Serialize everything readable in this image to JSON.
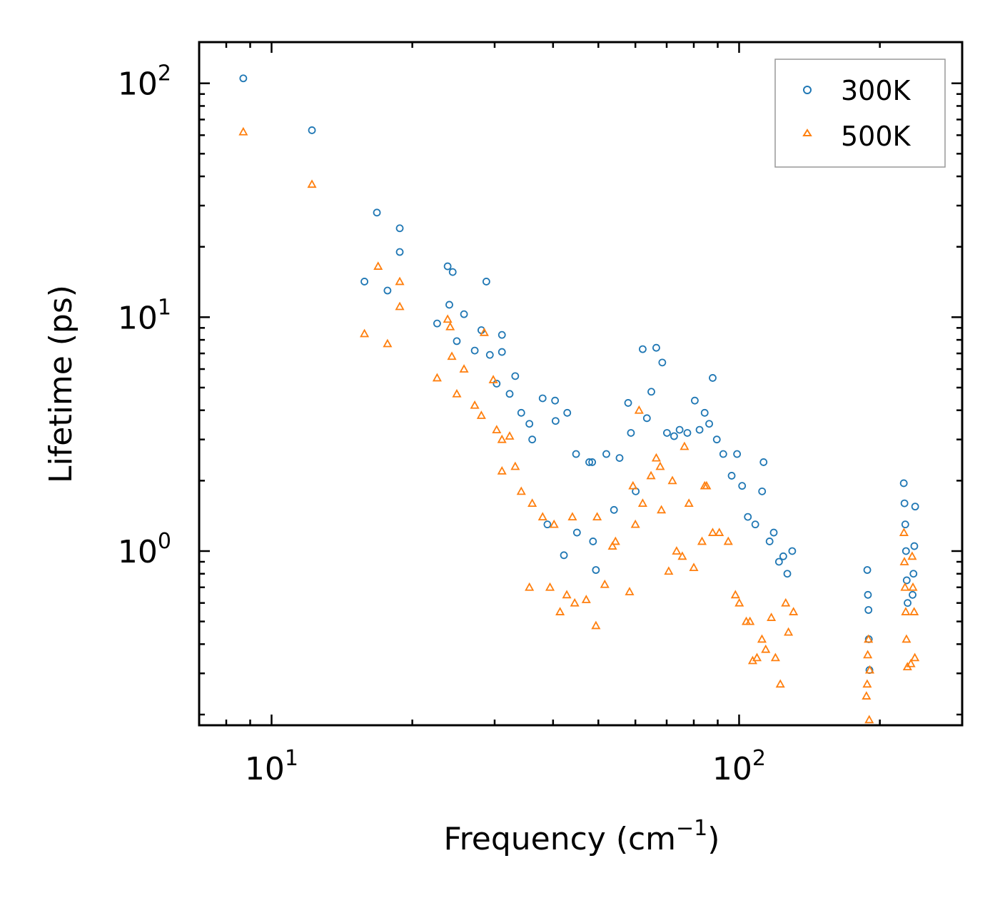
{
  "chart_data": {
    "type": "scatter",
    "title": "",
    "xlabel": "Frequency (cm",
    "xlabel_sup": "−1",
    "xlabel_end": ")",
    "ylabel": "Lifetime (ps)",
    "xscale": "log",
    "yscale": "log",
    "xlim": [
      7,
      300
    ],
    "ylim": [
      0.18,
      150
    ],
    "x_ticks": [
      {
        "base": "10",
        "exp": "1",
        "value": 10
      },
      {
        "base": "10",
        "exp": "2",
        "value": 100
      }
    ],
    "y_ticks": [
      {
        "base": "10",
        "exp": "0",
        "value": 1
      },
      {
        "base": "10",
        "exp": "1",
        "value": 10
      },
      {
        "base": "10",
        "exp": "2",
        "value": 100
      }
    ],
    "legend_position": "top-right",
    "series": [
      {
        "name": "300K",
        "marker": "circle",
        "color": "#1f77b4",
        "points": [
          [
            8.7,
            105
          ],
          [
            12.2,
            63
          ],
          [
            15.8,
            14.2
          ],
          [
            16.8,
            28
          ],
          [
            17.7,
            13
          ],
          [
            18.8,
            24
          ],
          [
            18.8,
            19
          ],
          [
            22.6,
            9.4
          ],
          [
            23.8,
            16.5
          ],
          [
            24.0,
            11.3
          ],
          [
            24.4,
            15.6
          ],
          [
            24.9,
            7.9
          ],
          [
            25.8,
            10.3
          ],
          [
            27.2,
            7.2
          ],
          [
            28.1,
            8.8
          ],
          [
            28.8,
            14.2
          ],
          [
            29.3,
            6.9
          ],
          [
            30.3,
            5.2
          ],
          [
            31.1,
            7.1
          ],
          [
            31.1,
            8.4
          ],
          [
            32.3,
            4.7
          ],
          [
            33.2,
            5.6
          ],
          [
            34.2,
            3.9
          ],
          [
            35.6,
            3.5
          ],
          [
            36.1,
            3.0
          ],
          [
            38.0,
            4.5
          ],
          [
            40.4,
            4.4
          ],
          [
            40.5,
            3.6
          ],
          [
            42.9,
            3.9
          ],
          [
            44.8,
            2.6
          ],
          [
            47.8,
            2.4
          ],
          [
            48.5,
            2.4
          ],
          [
            52.0,
            2.6
          ],
          [
            55.5,
            2.5
          ],
          [
            57.9,
            4.3
          ],
          [
            58.7,
            3.2
          ],
          [
            62.2,
            7.3
          ],
          [
            63.5,
            3.7
          ],
          [
            64.9,
            4.8
          ],
          [
            66.5,
            7.4
          ],
          [
            68.5,
            6.4
          ],
          [
            70.1,
            3.2
          ],
          [
            72.6,
            3.1
          ],
          [
            74.6,
            3.3
          ],
          [
            77.5,
            3.2
          ],
          [
            80.4,
            4.4
          ],
          [
            82.3,
            3.3
          ],
          [
            84.4,
            3.9
          ],
          [
            86.3,
            3.5
          ],
          [
            87.8,
            5.5
          ],
          [
            89.6,
            3.0
          ],
          [
            92.5,
            2.6
          ],
          [
            96.4,
            2.1
          ],
          [
            99.0,
            2.6
          ],
          [
            101.5,
            1.9
          ],
          [
            104.4,
            1.4
          ],
          [
            108.3,
            1.3
          ],
          [
            112.0,
            1.8
          ],
          [
            112.8,
            2.4
          ],
          [
            116.2,
            1.1
          ],
          [
            118.6,
            1.2
          ],
          [
            121.7,
            0.9
          ],
          [
            124.3,
            0.95
          ],
          [
            126.8,
            0.8
          ],
          [
            129.9,
            1.0
          ],
          [
            45.0,
            1.2
          ],
          [
            48.7,
            1.1
          ],
          [
            54.0,
            1.5
          ],
          [
            60.1,
            1.8
          ],
          [
            49.4,
            0.83
          ],
          [
            42.2,
            0.96
          ],
          [
            38.9,
            1.3
          ],
          [
            188.0,
            0.83
          ],
          [
            188.6,
            0.65
          ],
          [
            189.1,
            0.56
          ],
          [
            189.4,
            0.42
          ],
          [
            190.0,
            0.31
          ],
          [
            225.0,
            1.95
          ],
          [
            225.8,
            1.6
          ],
          [
            226.7,
            1.3
          ],
          [
            227.5,
            1.0
          ],
          [
            228.3,
            0.75
          ],
          [
            229.3,
            0.6
          ],
          [
            238.0,
            1.55
          ],
          [
            237.0,
            1.05
          ],
          [
            236.0,
            0.8
          ],
          [
            235.0,
            0.65
          ]
        ]
      },
      {
        "name": "500K",
        "marker": "triangle",
        "color": "#ff7f0e",
        "points": [
          [
            8.7,
            62
          ],
          [
            12.2,
            37
          ],
          [
            15.8,
            8.5
          ],
          [
            16.9,
            16.5
          ],
          [
            17.7,
            7.7
          ],
          [
            18.8,
            14.2
          ],
          [
            18.8,
            11.1
          ],
          [
            22.6,
            5.5
          ],
          [
            23.8,
            9.8
          ],
          [
            24.1,
            9.1
          ],
          [
            24.3,
            6.8
          ],
          [
            24.9,
            4.7
          ],
          [
            25.8,
            6.0
          ],
          [
            27.2,
            4.2
          ],
          [
            28.1,
            3.8
          ],
          [
            28.5,
            8.6
          ],
          [
            29.8,
            5.4
          ],
          [
            30.3,
            3.3
          ],
          [
            31.1,
            3.0
          ],
          [
            31.1,
            2.2
          ],
          [
            32.3,
            3.1
          ],
          [
            33.2,
            2.3
          ],
          [
            34.2,
            1.8
          ],
          [
            35.6,
            0.7
          ],
          [
            36.1,
            1.6
          ],
          [
            38.0,
            1.4
          ],
          [
            39.4,
            0.7
          ],
          [
            40.2,
            1.3
          ],
          [
            41.4,
            0.55
          ],
          [
            42.8,
            0.65
          ],
          [
            44.5,
            0.6
          ],
          [
            47.1,
            0.62
          ],
          [
            49.4,
            0.48
          ],
          [
            51.6,
            0.72
          ],
          [
            54.4,
            1.1
          ],
          [
            58.3,
            0.67
          ],
          [
            60.0,
            1.3
          ],
          [
            62.2,
            1.6
          ],
          [
            64.8,
            2.1
          ],
          [
            66.5,
            2.5
          ],
          [
            67.8,
            2.3
          ],
          [
            68.2,
            1.5
          ],
          [
            70.7,
            0.82
          ],
          [
            73.5,
            1.0
          ],
          [
            75.6,
            0.95
          ],
          [
            78.1,
            1.6
          ],
          [
            80.0,
            0.85
          ],
          [
            83.3,
            1.1
          ],
          [
            85.2,
            1.9
          ],
          [
            87.8,
            1.2
          ],
          [
            90.7,
            1.2
          ],
          [
            94.8,
            1.1
          ],
          [
            98.2,
            0.65
          ],
          [
            100.1,
            0.6
          ],
          [
            103.6,
            0.5
          ],
          [
            105.5,
            0.5
          ],
          [
            106.9,
            0.34
          ],
          [
            109.2,
            0.35
          ],
          [
            111.9,
            0.42
          ],
          [
            114.0,
            0.38
          ],
          [
            117.2,
            0.52
          ],
          [
            119.6,
            0.35
          ],
          [
            122.5,
            0.27
          ],
          [
            125.8,
            0.6
          ],
          [
            127.5,
            0.45
          ],
          [
            130.7,
            0.55
          ],
          [
            44.0,
            1.4
          ],
          [
            49.7,
            1.4
          ],
          [
            53.6,
            1.05
          ],
          [
            59.3,
            1.9
          ],
          [
            61.1,
            4.0
          ],
          [
            72.0,
            2.0
          ],
          [
            76.4,
            2.8
          ],
          [
            84.4,
            1.9
          ],
          [
            187.2,
            0.24
          ],
          [
            187.9,
            0.27
          ],
          [
            188.4,
            0.36
          ],
          [
            189.1,
            0.42
          ],
          [
            189.8,
            0.19
          ],
          [
            190.3,
            0.31
          ],
          [
            225.2,
            1.2
          ],
          [
            225.7,
            0.9
          ],
          [
            226.4,
            0.7
          ],
          [
            227.2,
            0.55
          ],
          [
            228.0,
            0.42
          ],
          [
            229.1,
            0.32
          ],
          [
            234.5,
            0.95
          ],
          [
            235.4,
            0.7
          ],
          [
            236.8,
            0.55
          ],
          [
            237.6,
            0.35
          ],
          [
            233.0,
            0.33
          ]
        ]
      }
    ]
  }
}
